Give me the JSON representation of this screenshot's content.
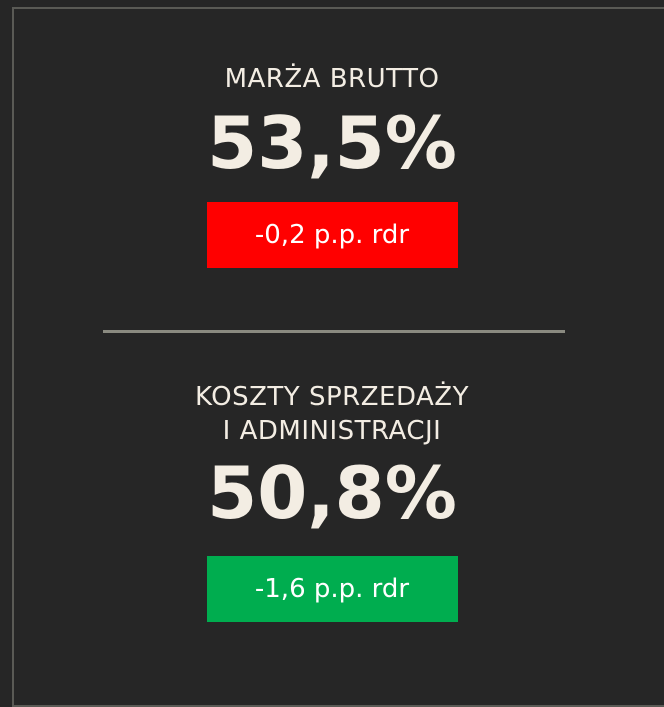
{
  "metrics": [
    {
      "label": "MARŻA BRUTTO",
      "value": "53,5%",
      "change": "-0,2 p.p. rdr"
    },
    {
      "label_lines": [
        "KOSZTY SPRZEDAŻY",
        "I ADMINISTRACJI"
      ],
      "value": "50,8%",
      "change": "-1,6 p.p. rdr"
    }
  ]
}
